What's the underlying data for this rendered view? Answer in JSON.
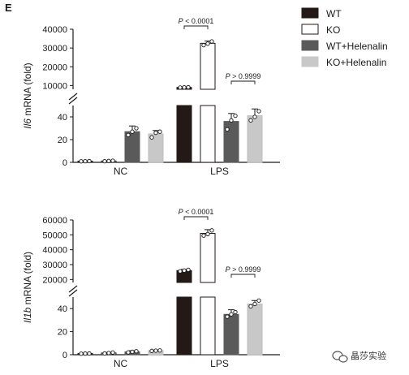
{
  "panel_label": "E",
  "legend": [
    {
      "label": "WT",
      "color": "#231916",
      "fill": "#231916"
    },
    {
      "label": "KO",
      "color": "#231916",
      "fill": "#ffffff"
    },
    {
      "label": "WT+Helenalin",
      "color": "#5a5a5a",
      "fill": "#5a5a5a"
    },
    {
      "label": "KO+Helenalin",
      "color": "#c8c8c8",
      "fill": "#c8c8c8"
    }
  ],
  "watermark": {
    "text": "晶莎实验",
    "icon": "wechat-icon"
  },
  "chart_data": [
    {
      "type": "bar",
      "ylabel_italic": "Il6",
      "ylabel_rest": " mRNA (fold)",
      "categories": [
        "NC",
        "LPS"
      ],
      "upper_axis": {
        "ylim": [
          8000,
          40000
        ],
        "ticks": [
          "10000",
          "20000",
          "30000",
          "40000"
        ],
        "tick_values": [
          10000,
          20000,
          30000,
          40000
        ]
      },
      "lower_axis": {
        "ylim": [
          0,
          50
        ],
        "ticks": [
          "0",
          "20",
          "40"
        ],
        "tick_values": [
          0,
          20,
          40
        ]
      },
      "series": [
        {
          "name": "WT",
          "values": [
            1,
            9000
          ],
          "errors": [
            0.3,
            300
          ],
          "points": [
            [
              0.9,
              1.0,
              1.1
            ],
            [
              8900,
              9000,
              9100
            ]
          ]
        },
        {
          "name": "KO",
          "values": [
            1.2,
            32500
          ],
          "errors": [
            0.3,
            1200
          ],
          "points": [
            [
              1.0,
              1.2,
              1.4
            ],
            [
              31500,
              32300,
              33500
            ]
          ]
        },
        {
          "name": "WT+Helenalin",
          "values": [
            27,
            36
          ],
          "errors": [
            5,
            7
          ],
          "points": [
            [
              24,
              27,
              30
            ],
            [
              29,
              37,
              41
            ]
          ]
        },
        {
          "name": "KO+Helenalin",
          "values": [
            25,
            41
          ],
          "errors": [
            3,
            6
          ],
          "points": [
            [
              22,
              26,
              27
            ],
            [
              37,
              40,
              45
            ]
          ]
        }
      ],
      "annotations": [
        {
          "italic": "P",
          "rest": " < 0.0001",
          "between": [
            "WT",
            "KO"
          ],
          "category": "LPS"
        },
        {
          "italic": "P",
          "rest": " > 0.9999",
          "between": [
            "WT+Helenalin",
            "KO+Helenalin"
          ],
          "category": "LPS"
        }
      ]
    },
    {
      "type": "bar",
      "ylabel_italic": "Il1b",
      "ylabel_rest": " mRNA (fold)",
      "categories": [
        "NC",
        "LPS"
      ],
      "upper_axis": {
        "ylim": [
          18000,
          60000
        ],
        "ticks": [
          "20000",
          "30000",
          "40000",
          "50000",
          "60000"
        ],
        "tick_values": [
          20000,
          30000,
          40000,
          50000,
          60000
        ]
      },
      "lower_axis": {
        "ylim": [
          0,
          50
        ],
        "ticks": [
          "0",
          "20",
          "40"
        ],
        "tick_values": [
          0,
          20,
          40
        ]
      },
      "series": [
        {
          "name": "WT",
          "values": [
            1,
            26000
          ],
          "errors": [
            0.3,
            800
          ],
          "points": [
            [
              0.9,
              1.0,
              1.1
            ],
            [
              25500,
              26000,
              26500
            ]
          ]
        },
        {
          "name": "KO",
          "values": [
            1.5,
            51000
          ],
          "errors": [
            0.5,
            2500
          ],
          "points": [
            [
              1.1,
              1.5,
              1.9
            ],
            [
              49500,
              50500,
              53000
            ]
          ]
        },
        {
          "name": "WT+Helenalin",
          "values": [
            2.5,
            35
          ],
          "errors": [
            1,
            4
          ],
          "points": [
            [
              2.0,
              2.5,
              3.0
            ],
            [
              33,
              35,
              37
            ]
          ]
        },
        {
          "name": "KO+Helenalin",
          "values": [
            3.5,
            44
          ],
          "errors": [
            0.5,
            3
          ],
          "points": [
            [
              3.3,
              3.5,
              3.7
            ],
            [
              42,
              44,
              47
            ]
          ]
        }
      ],
      "annotations": [
        {
          "italic": "P",
          "rest": " < 0.0001",
          "between": [
            "WT",
            "KO"
          ],
          "category": "LPS"
        },
        {
          "italic": "P",
          "rest": " > 0.9999",
          "between": [
            "WT+Helenalin",
            "KO+Helenalin"
          ],
          "category": "LPS"
        }
      ]
    }
  ]
}
